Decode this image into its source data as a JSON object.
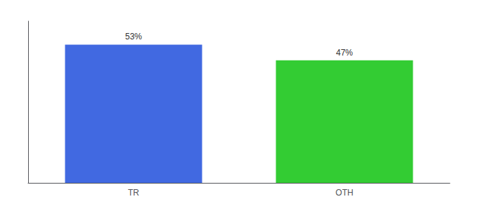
{
  "chart_data": {
    "type": "bar",
    "categories": [
      "TR",
      "OTH"
    ],
    "values": [
      53,
      47
    ],
    "value_labels": [
      "53%",
      "47%"
    ],
    "colors": [
      "#4169e1",
      "#33cc33"
    ],
    "ylim": [
      0,
      62
    ],
    "data_labels": true,
    "tick_labels": "x",
    "grid": false
  }
}
